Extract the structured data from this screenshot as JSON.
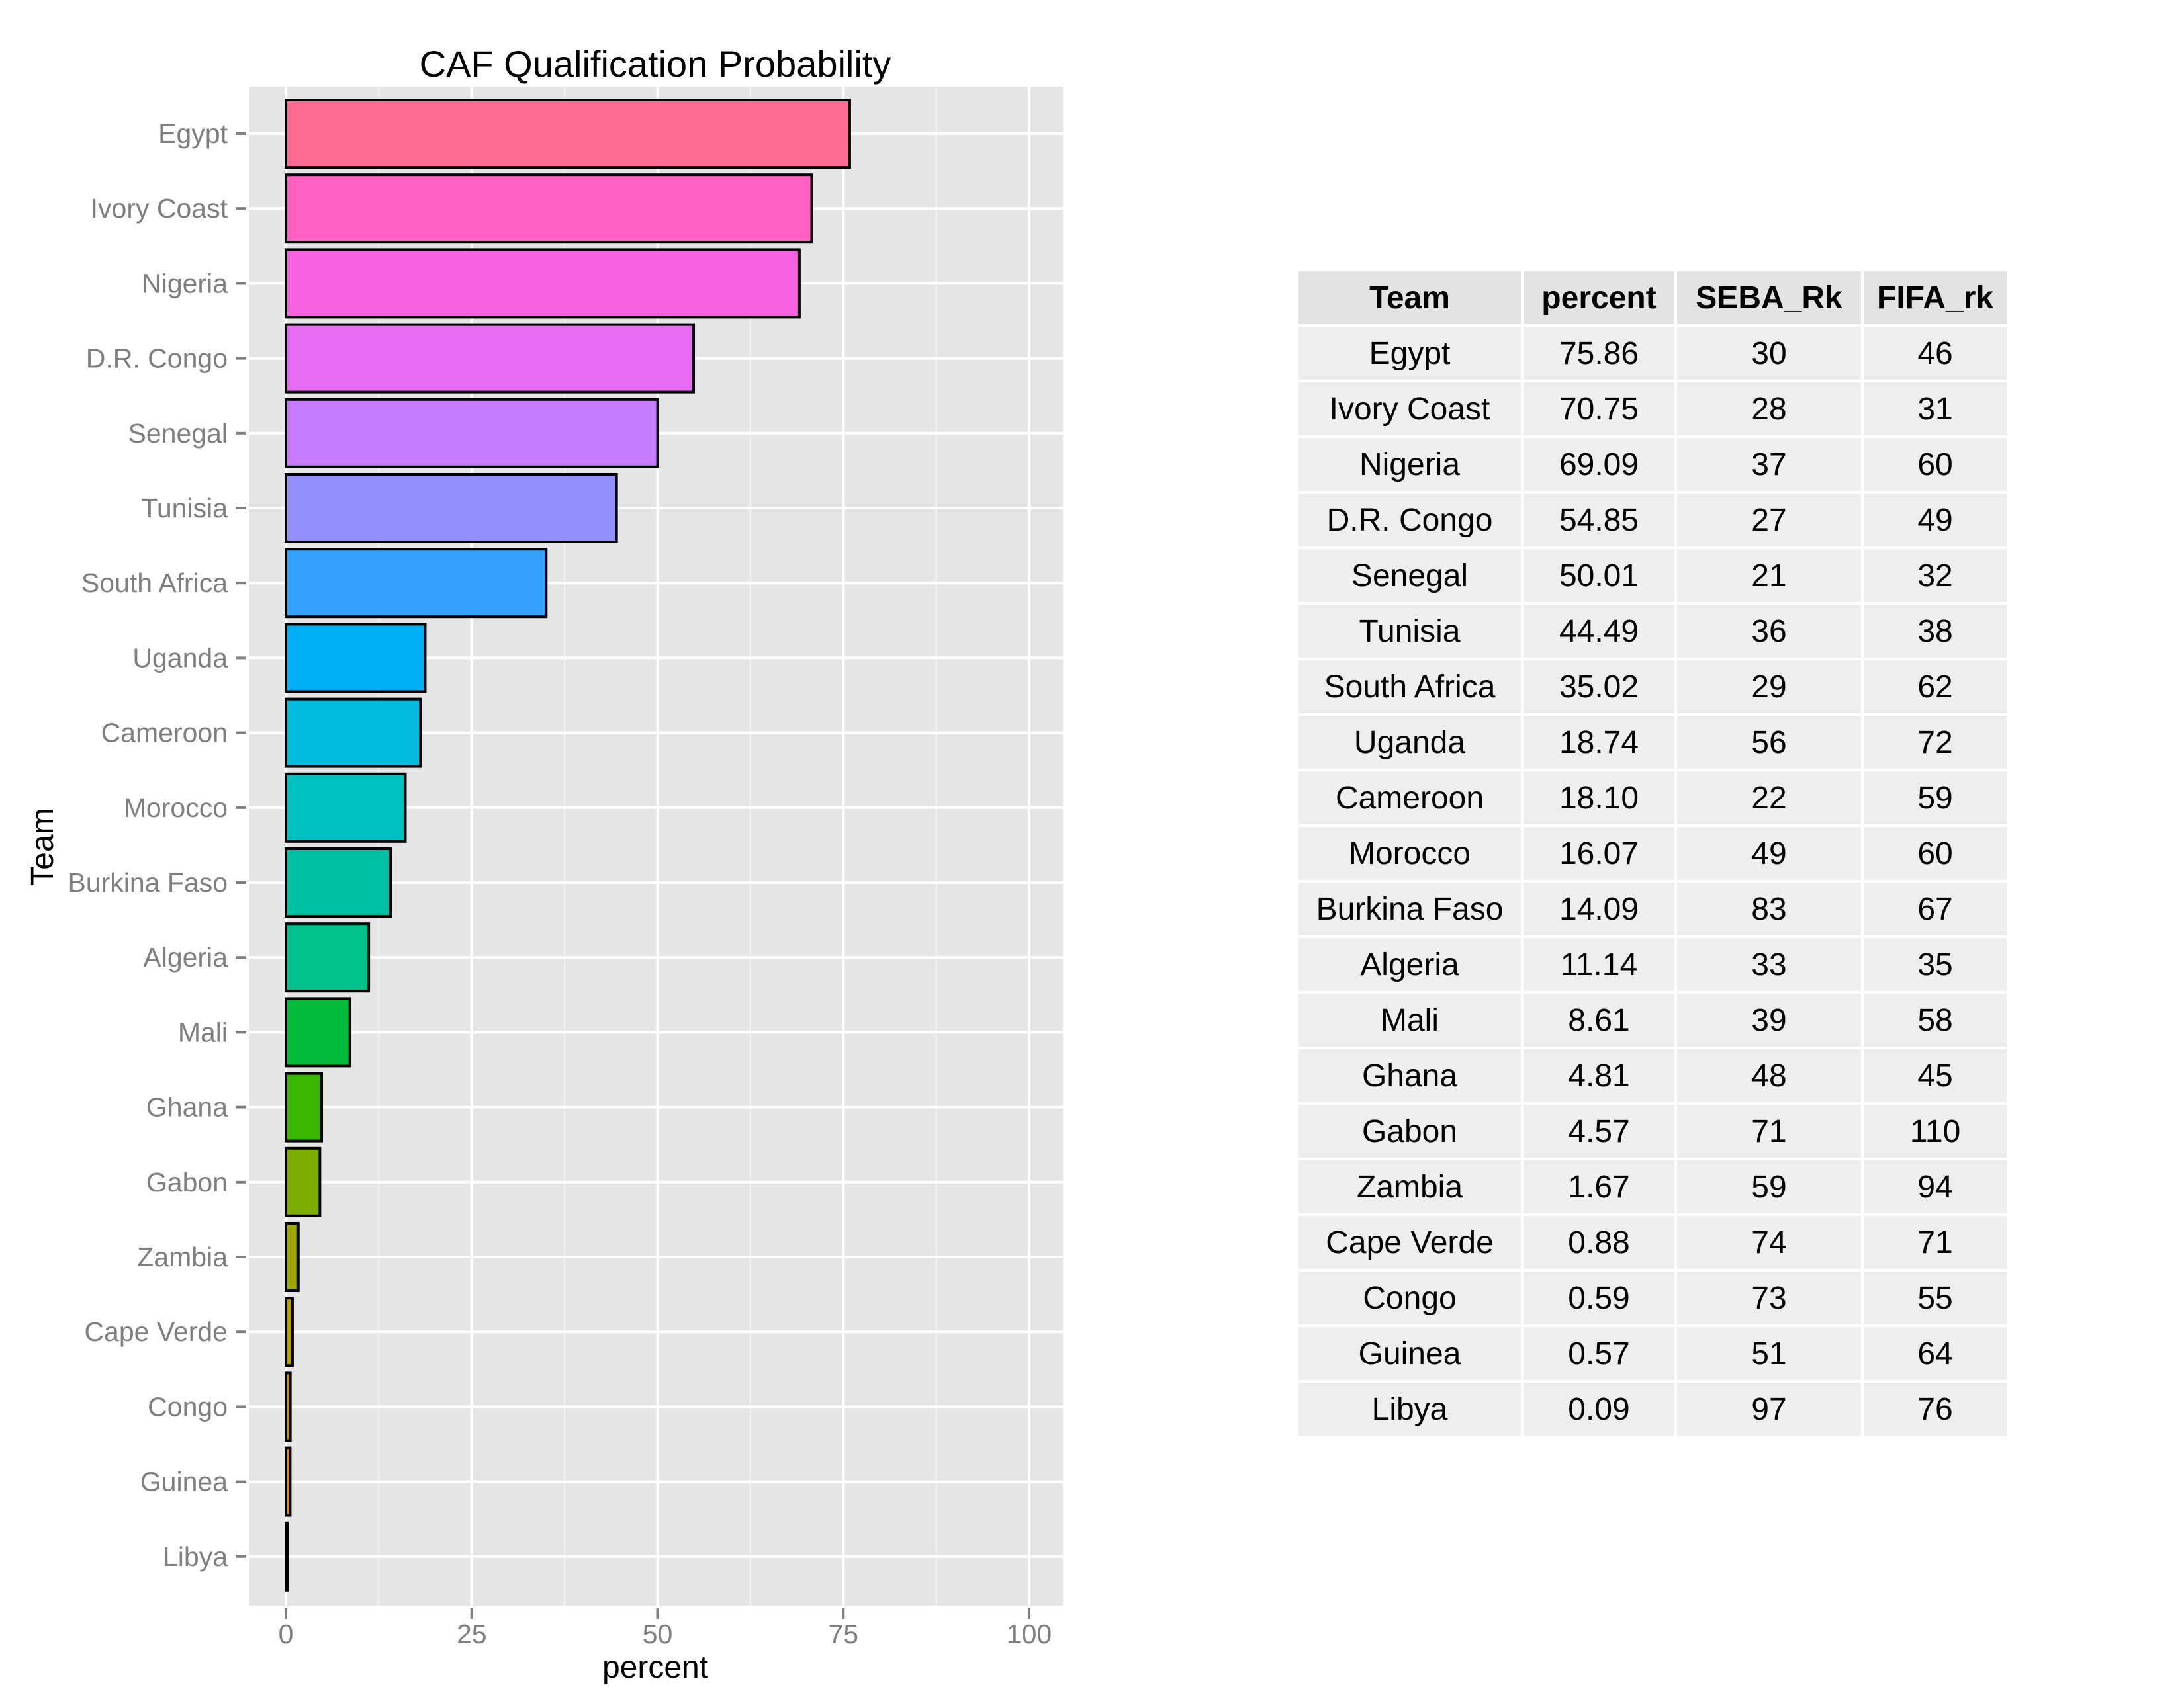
{
  "chart_data": {
    "type": "bar",
    "orientation": "horizontal",
    "title": "CAF Qualification Probability",
    "xlabel": "percent",
    "ylabel": "Team",
    "xlim": [
      0,
      100
    ],
    "x_ticks": [
      "0",
      "25",
      "50",
      "75",
      "100"
    ],
    "x_tick_values": [
      0,
      25,
      50,
      75,
      100
    ],
    "grid": true,
    "legend": "none",
    "categories": [
      "Egypt",
      "Ivory Coast",
      "Nigeria",
      "D.R. Congo",
      "Senegal",
      "Tunisia",
      "South Africa",
      "Uganda",
      "Cameroon",
      "Morocco",
      "Burkina Faso",
      "Algeria",
      "Mali",
      "Ghana",
      "Gabon",
      "Zambia",
      "Cape Verde",
      "Congo",
      "Guinea",
      "Libya"
    ],
    "values": [
      75.86,
      70.75,
      69.09,
      54.85,
      50.01,
      44.49,
      35.02,
      18.74,
      18.1,
      16.07,
      14.09,
      11.14,
      8.61,
      4.81,
      4.57,
      1.67,
      0.88,
      0.59,
      0.57,
      0.09
    ],
    "colors": [
      "#FF6C91",
      "#FF61C3",
      "#F763E0",
      "#E76BF3",
      "#C77CFF",
      "#9590FF",
      "#35A2FF",
      "#00B0F6",
      "#00BBDD",
      "#00C1C2",
      "#00C0A3",
      "#00C08B",
      "#00BA38",
      "#39B600",
      "#7CAE00",
      "#9DA700",
      "#B79F00",
      "#CD9600",
      "#DE8C00",
      "#EA8331"
    ]
  },
  "table": {
    "headers": [
      "Team",
      "percent",
      "SEBA_Rk",
      "FIFA_rk"
    ],
    "rows": [
      [
        "Egypt",
        "75.86",
        "30",
        "46"
      ],
      [
        "Ivory Coast",
        "70.75",
        "28",
        "31"
      ],
      [
        "Nigeria",
        "69.09",
        "37",
        "60"
      ],
      [
        "D.R. Congo",
        "54.85",
        "27",
        "49"
      ],
      [
        "Senegal",
        "50.01",
        "21",
        "32"
      ],
      [
        "Tunisia",
        "44.49",
        "36",
        "38"
      ],
      [
        "South Africa",
        "35.02",
        "29",
        "62"
      ],
      [
        "Uganda",
        "18.74",
        "56",
        "72"
      ],
      [
        "Cameroon",
        "18.10",
        "22",
        "59"
      ],
      [
        "Morocco",
        "16.07",
        "49",
        "60"
      ],
      [
        "Burkina Faso",
        "14.09",
        "83",
        "67"
      ],
      [
        "Algeria",
        "11.14",
        "33",
        "35"
      ],
      [
        "Mali",
        "8.61",
        "39",
        "58"
      ],
      [
        "Ghana",
        "4.81",
        "48",
        "45"
      ],
      [
        "Gabon",
        "4.57",
        "71",
        "110"
      ],
      [
        "Zambia",
        "1.67",
        "59",
        "94"
      ],
      [
        "Cape Verde",
        "0.88",
        "74",
        "71"
      ],
      [
        "Congo",
        "0.59",
        "73",
        "55"
      ],
      [
        "Guinea",
        "0.57",
        "51",
        "64"
      ],
      [
        "Libya",
        "0.09",
        "97",
        "76"
      ]
    ]
  }
}
